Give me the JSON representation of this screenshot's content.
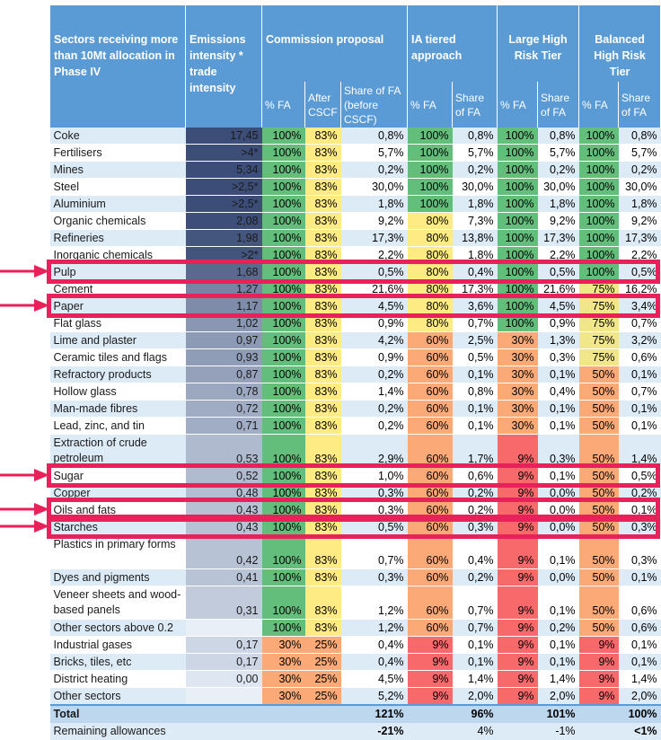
{
  "header": {
    "sectors": "Sectors receiving more than 10Mt allocation in Phase IV",
    "intensity": "Emissions intensity * trade intensity",
    "commission": "Commission proposal",
    "ia": "IA tiered approach",
    "large": "Large High Risk Tier",
    "balanced": "Balanced High Risk Tier",
    "fa": "% FA",
    "after": "After CSCF",
    "share_before": "Share of FA (before CSCF)",
    "share": "Share of FA"
  },
  "rows": [
    {
      "name": "Coke",
      "intensity": "17,45",
      "c_fa": "100%",
      "c_after": "83%",
      "c_share": "0,8%",
      "ia_fa": "100%",
      "ia_share": "0,8%",
      "l_fa": "100%",
      "l_share": "0,8%",
      "b_fa": "100%",
      "b_share": "0,8%"
    },
    {
      "name": "Fertilisers",
      "intensity": ">4*",
      "c_fa": "100%",
      "c_after": "83%",
      "c_share": "5,7%",
      "ia_fa": "100%",
      "ia_share": "5,7%",
      "l_fa": "100%",
      "l_share": "5,7%",
      "b_fa": "100%",
      "b_share": "5,7%"
    },
    {
      "name": "Mines",
      "intensity": "5,34",
      "c_fa": "100%",
      "c_after": "83%",
      "c_share": "0,2%",
      "ia_fa": "100%",
      "ia_share": "0,2%",
      "l_fa": "100%",
      "l_share": "0,2%",
      "b_fa": "100%",
      "b_share": "0,2%"
    },
    {
      "name": "Steel",
      "intensity": ">2,5*",
      "c_fa": "100%",
      "c_after": "83%",
      "c_share": "30,0%",
      "ia_fa": "100%",
      "ia_share": "30,0%",
      "l_fa": "100%",
      "l_share": "30,0%",
      "b_fa": "100%",
      "b_share": "30,0%"
    },
    {
      "name": "Aluminium",
      "intensity": ">2,5*",
      "c_fa": "100%",
      "c_after": "83%",
      "c_share": "1,8%",
      "ia_fa": "100%",
      "ia_share": "1,8%",
      "l_fa": "100%",
      "l_share": "1,8%",
      "b_fa": "100%",
      "b_share": "1,8%"
    },
    {
      "name": "Organic chemicals",
      "intensity": "2,08",
      "c_fa": "100%",
      "c_after": "83%",
      "c_share": "9,2%",
      "ia_fa": "80%",
      "ia_share": "7,3%",
      "l_fa": "100%",
      "l_share": "9,2%",
      "b_fa": "100%",
      "b_share": "9,2%"
    },
    {
      "name": "Refineries",
      "intensity": "1,98",
      "c_fa": "100%",
      "c_after": "83%",
      "c_share": "17,3%",
      "ia_fa": "80%",
      "ia_share": "13,8%",
      "l_fa": "100%",
      "l_share": "17,3%",
      "b_fa": "100%",
      "b_share": "17,3%"
    },
    {
      "name": "Inorganic chemicals",
      "intensity": ">2*",
      "c_fa": "100%",
      "c_after": "83%",
      "c_share": "2,2%",
      "ia_fa": "80%",
      "ia_share": "1,8%",
      "l_fa": "100%",
      "l_share": "2,2%",
      "b_fa": "100%",
      "b_share": "2,2%"
    },
    {
      "name": "Pulp",
      "intensity": "1,68",
      "c_fa": "100%",
      "c_after": "83%",
      "c_share": "0,5%",
      "ia_fa": "80%",
      "ia_share": "0,4%",
      "l_fa": "100%",
      "l_share": "0,5%",
      "b_fa": "100%",
      "b_share": "0,5%"
    },
    {
      "name": "Cement",
      "intensity": "1,27",
      "c_fa": "100%",
      "c_after": "83%",
      "c_share": "21,6%",
      "ia_fa": "80%",
      "ia_share": "17,3%",
      "l_fa": "100%",
      "l_share": "21,6%",
      "b_fa": "75%",
      "b_share": "16,2%"
    },
    {
      "name": "Paper",
      "intensity": "1,17",
      "c_fa": "100%",
      "c_after": "83%",
      "c_share": "4,5%",
      "ia_fa": "80%",
      "ia_share": "3,6%",
      "l_fa": "100%",
      "l_share": "4,5%",
      "b_fa": "75%",
      "b_share": "3,4%"
    },
    {
      "name": "Flat glass",
      "intensity": "1,02",
      "c_fa": "100%",
      "c_after": "83%",
      "c_share": "0,9%",
      "ia_fa": "80%",
      "ia_share": "0,7%",
      "l_fa": "100%",
      "l_share": "0,9%",
      "b_fa": "75%",
      "b_share": "0,7%"
    },
    {
      "name": "Lime and plaster",
      "intensity": "0,97",
      "c_fa": "100%",
      "c_after": "83%",
      "c_share": "4,2%",
      "ia_fa": "60%",
      "ia_share": "2,5%",
      "l_fa": "30%",
      "l_share": "1,3%",
      "b_fa": "75%",
      "b_share": "3,2%"
    },
    {
      "name": "Ceramic tiles and flags",
      "intensity": "0,93",
      "c_fa": "100%",
      "c_after": "83%",
      "c_share": "0,9%",
      "ia_fa": "60%",
      "ia_share": "0,5%",
      "l_fa": "30%",
      "l_share": "0,3%",
      "b_fa": "75%",
      "b_share": "0,6%"
    },
    {
      "name": "Refractory products",
      "intensity": "0,87",
      "c_fa": "100%",
      "c_after": "83%",
      "c_share": "0,2%",
      "ia_fa": "60%",
      "ia_share": "0,1%",
      "l_fa": "30%",
      "l_share": "0,1%",
      "b_fa": "50%",
      "b_share": "0,1%"
    },
    {
      "name": "Hollow glass",
      "intensity": "0,78",
      "c_fa": "100%",
      "c_after": "83%",
      "c_share": "1,4%",
      "ia_fa": "60%",
      "ia_share": "0,8%",
      "l_fa": "30%",
      "l_share": "0,4%",
      "b_fa": "50%",
      "b_share": "0,7%"
    },
    {
      "name": "Man-made fibres",
      "intensity": "0,72",
      "c_fa": "100%",
      "c_after": "83%",
      "c_share": "0,2%",
      "ia_fa": "60%",
      "ia_share": "0,1%",
      "l_fa": "30%",
      "l_share": "0,1%",
      "b_fa": "50%",
      "b_share": "0,1%"
    },
    {
      "name": "Lead, zinc, and tin",
      "intensity": "0,71",
      "c_fa": "100%",
      "c_after": "83%",
      "c_share": "0,2%",
      "ia_fa": "60%",
      "ia_share": "0,1%",
      "l_fa": "30%",
      "l_share": "0,1%",
      "b_fa": "50%",
      "b_share": "0,1%"
    },
    {
      "name": "Extraction of crude petroleum",
      "intensity": "0,53",
      "c_fa": "100%",
      "c_after": "83%",
      "c_share": "2,9%",
      "ia_fa": "60%",
      "ia_share": "1,7%",
      "l_fa": "9%",
      "l_share": "0,3%",
      "b_fa": "50%",
      "b_share": "1,4%",
      "tall": true
    },
    {
      "name": "Sugar",
      "intensity": "0,52",
      "c_fa": "100%",
      "c_after": "83%",
      "c_share": "1,0%",
      "ia_fa": "60%",
      "ia_share": "0,6%",
      "l_fa": "9%",
      "l_share": "0,1%",
      "b_fa": "50%",
      "b_share": "0,5%"
    },
    {
      "name": "Copper",
      "intensity": "0,48",
      "c_fa": "100%",
      "c_after": "83%",
      "c_share": "0,3%",
      "ia_fa": "60%",
      "ia_share": "0,2%",
      "l_fa": "9%",
      "l_share": "0,0%",
      "b_fa": "50%",
      "b_share": "0,2%"
    },
    {
      "name": "Oils and fats",
      "intensity": "0,43",
      "c_fa": "100%",
      "c_after": "83%",
      "c_share": "0,3%",
      "ia_fa": "60%",
      "ia_share": "0,2%",
      "l_fa": "9%",
      "l_share": "0,0%",
      "b_fa": "50%",
      "b_share": "0,1%"
    },
    {
      "name": "Starches",
      "intensity": "0,43",
      "c_fa": "100%",
      "c_after": "83%",
      "c_share": "0,5%",
      "ia_fa": "60%",
      "ia_share": "0,3%",
      "l_fa": "9%",
      "l_share": "0,0%",
      "b_fa": "50%",
      "b_share": "0,3%"
    },
    {
      "name": "Plastics in primary forms",
      "intensity": "0,42",
      "c_fa": "100%",
      "c_after": "83%",
      "c_share": "0,7%",
      "ia_fa": "60%",
      "ia_share": "0,4%",
      "l_fa": "9%",
      "l_share": "0,1%",
      "b_fa": "50%",
      "b_share": "0,3%",
      "tall": true
    },
    {
      "name": "Dyes and pigments",
      "intensity": "0,41",
      "c_fa": "100%",
      "c_after": "83%",
      "c_share": "0,3%",
      "ia_fa": "60%",
      "ia_share": "0,2%",
      "l_fa": "9%",
      "l_share": "0,0%",
      "b_fa": "50%",
      "b_share": "0,1%"
    },
    {
      "name": "Veneer sheets and wood-based panels",
      "intensity": "0,31",
      "c_fa": "100%",
      "c_after": "83%",
      "c_share": "1,2%",
      "ia_fa": "60%",
      "ia_share": "0,7%",
      "l_fa": "9%",
      "l_share": "0,1%",
      "b_fa": "50%",
      "b_share": "0,6%",
      "tall": true
    },
    {
      "name": "Other sectors above 0.2",
      "intensity": "",
      "c_fa": "100%",
      "c_after": "83%",
      "c_share": "1,2%",
      "ia_fa": "60%",
      "ia_share": "0,7%",
      "l_fa": "9%",
      "l_share": "0,2%",
      "b_fa": "50%",
      "b_share": "0,6%"
    },
    {
      "name": "Industrial gases",
      "intensity": "0,17",
      "c_fa": "30%",
      "c_after": "25%",
      "c_share": "0,4%",
      "ia_fa": "9%",
      "ia_share": "0,1%",
      "l_fa": "9%",
      "l_share": "0,1%",
      "b_fa": "9%",
      "b_share": "0,1%"
    },
    {
      "name": "Bricks, tiles, etc",
      "intensity": "0,17",
      "c_fa": "30%",
      "c_after": "25%",
      "c_share": "0,4%",
      "ia_fa": "9%",
      "ia_share": "0,1%",
      "l_fa": "9%",
      "l_share": "0,1%",
      "b_fa": "9%",
      "b_share": "0,1%"
    },
    {
      "name": "District heating",
      "intensity": "0,00",
      "c_fa": "30%",
      "c_after": "25%",
      "c_share": "4,5%",
      "ia_fa": "9%",
      "ia_share": "1,4%",
      "l_fa": "9%",
      "l_share": "1,4%",
      "b_fa": "9%",
      "b_share": "1,4%"
    },
    {
      "name": "Other sectors",
      "intensity": "",
      "c_fa": "30%",
      "c_after": "25%",
      "c_share": "5,2%",
      "ia_fa": "9%",
      "ia_share": "2,0%",
      "l_fa": "9%",
      "l_share": "2,0%",
      "b_fa": "9%",
      "b_share": "2,0%"
    }
  ],
  "total": {
    "label": "Total",
    "c": "121%",
    "ia": "96%",
    "l": "101%",
    "b": "100%"
  },
  "remaining": {
    "label": "Remaining allowances",
    "c": "-21%",
    "ia": "4%",
    "l": "-1%",
    "b": "<1%"
  },
  "highlighted_rows": [
    "Pulp",
    "Paper",
    "Sugar",
    "Oils and fats",
    "Starches"
  ],
  "colors": {
    "header": "#5b9bd5",
    "highlight": "#e8215a",
    "green": "#63be7b",
    "yellow": "#ffeb84",
    "orange": "#fbaa77",
    "red": "#f8696b"
  }
}
